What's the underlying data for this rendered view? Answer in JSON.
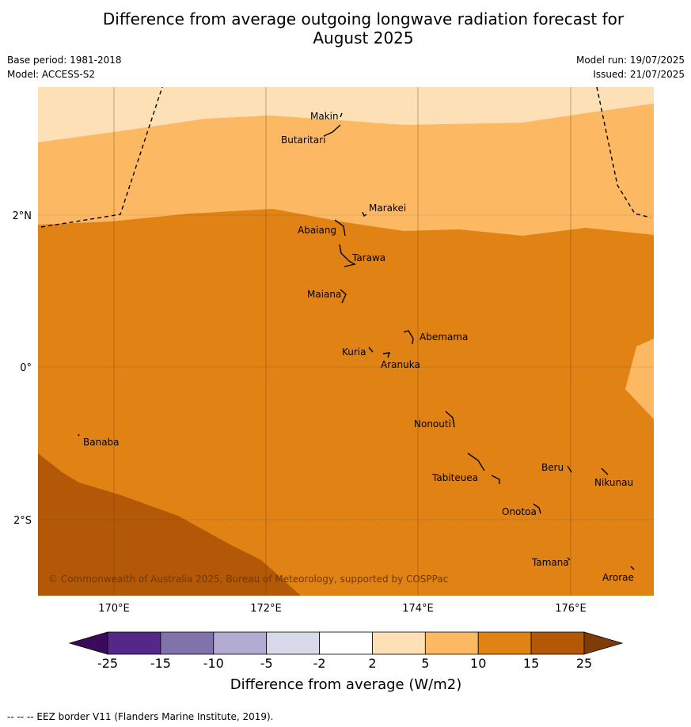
{
  "title_line1": "Difference from average outgoing longwave radiation forecast for",
  "title_line2": "August 2025",
  "base_period": "Base period: 1981-2018",
  "model": "Model: ACCESS-S2",
  "model_run": "Model run: 19/07/2025",
  "issued": "Issued: 21/07/2025",
  "map": {
    "lat_labels": [
      "2°N",
      "0°",
      "2°S"
    ],
    "lon_labels": [
      "170°E",
      "172°E",
      "174°E",
      "176°E"
    ],
    "places": [
      "Makin",
      "Butaritari",
      "Marakei",
      "Abaiang",
      "Tarawa",
      "Maiana",
      "Abemama",
      "Kuria",
      "Aranuka",
      "Banaba",
      "Nonouti",
      "Tabiteuea",
      "Beru",
      "Nikunau",
      "Onotoa",
      "Tamana",
      "Arorae"
    ],
    "copyright": "© Commonwealth of Australia 2025, Bureau of Meteorology, supported by COSPPac"
  },
  "colorbar": {
    "ticks": [
      "-25",
      "-15",
      "-10",
      "-5",
      "-2",
      "2",
      "5",
      "10",
      "15",
      "25"
    ],
    "colors": [
      "#3c0a5c",
      "#542788",
      "#8073ac",
      "#b2abd2",
      "#d8daeb",
      "#ffffff",
      "#fee0b6",
      "#fdb863",
      "#e08214",
      "#b35806",
      "#7f3b08"
    ],
    "title": "Difference from average (W/m2)"
  },
  "footer": "-- -- -- EEZ border V11 (Flanders Marine Institute, 2019)."
}
